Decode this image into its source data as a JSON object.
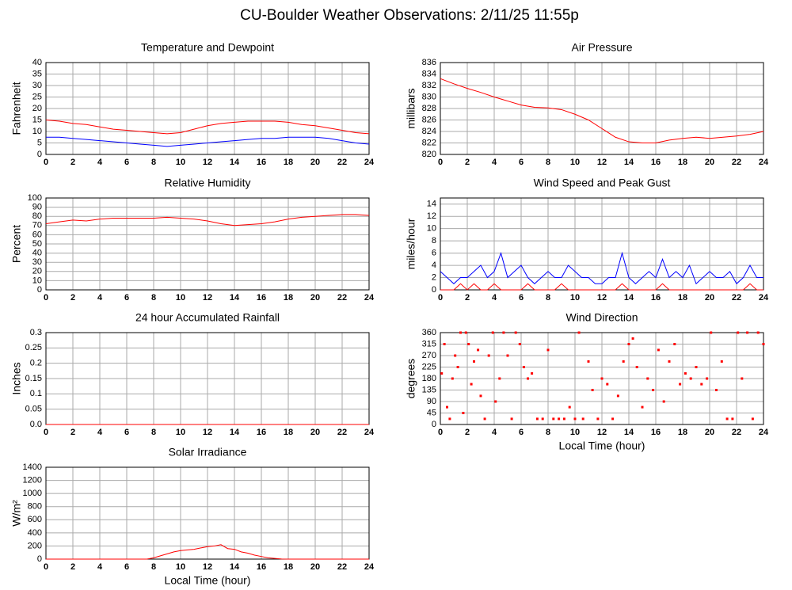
{
  "title": "CU-Boulder Weather Observations: 2/11/25 11:55p",
  "chart_data": [
    {
      "type": "line",
      "title": "Temperature and Dewpoint",
      "y_label": "Fahrenheit",
      "x": [
        0,
        1,
        2,
        3,
        4,
        5,
        6,
        7,
        8,
        9,
        10,
        11,
        12,
        13,
        14,
        15,
        16,
        17,
        18,
        19,
        20,
        21,
        22,
        23,
        24
      ],
      "series": [
        {
          "color": "#ff0000",
          "values": [
            15,
            14.5,
            13.5,
            13,
            12,
            11,
            10.5,
            10,
            9.5,
            9,
            9.5,
            11,
            12.5,
            13.5,
            14,
            14.5,
            14.5,
            14.5,
            14,
            13,
            12.5,
            11.5,
            10.5,
            9.5,
            9
          ]
        },
        {
          "color": "#0000ff",
          "values": [
            7.5,
            7.5,
            7,
            6.5,
            6,
            5.5,
            5,
            4.5,
            4,
            3.5,
            4,
            4.5,
            5,
            5.5,
            6,
            6.5,
            7,
            7,
            7.5,
            7.5,
            7.5,
            7,
            6,
            5,
            4.5
          ]
        }
      ],
      "xlim": [
        0,
        24
      ],
      "ylim": [
        0,
        40
      ],
      "xticks": [
        0,
        2,
        4,
        6,
        8,
        10,
        12,
        14,
        16,
        18,
        20,
        22,
        24
      ],
      "yticks": [
        0,
        5,
        10,
        15,
        20,
        25,
        30,
        35,
        40
      ],
      "grid": true
    },
    {
      "type": "line",
      "title": "Air Pressure",
      "y_label": "millibars",
      "x": [
        0,
        1,
        2,
        3,
        4,
        5,
        6,
        7,
        8,
        9,
        10,
        11,
        12,
        13,
        14,
        15,
        16,
        17,
        18,
        19,
        20,
        21,
        22,
        23,
        24
      ],
      "series": [
        {
          "color": "#ff0000",
          "values": [
            833.2,
            832.3,
            831.5,
            830.8,
            830,
            829.3,
            828.6,
            828.2,
            828.1,
            827.8,
            827,
            826,
            824.5,
            823,
            822.2,
            822,
            822,
            822.5,
            822.8,
            823,
            822.8,
            823,
            823.2,
            823.5,
            824
          ]
        }
      ],
      "xlim": [
        0,
        24
      ],
      "ylim": [
        820,
        836
      ],
      "xticks": [
        0,
        2,
        4,
        6,
        8,
        10,
        12,
        14,
        16,
        18,
        20,
        22,
        24
      ],
      "yticks": [
        820,
        822,
        824,
        826,
        828,
        830,
        832,
        834,
        836
      ],
      "grid": true
    },
    {
      "type": "line",
      "title": "Relative Humidity",
      "y_label": "Percent",
      "x": [
        0,
        1,
        2,
        3,
        4,
        5,
        6,
        7,
        8,
        9,
        10,
        11,
        12,
        13,
        14,
        15,
        16,
        17,
        18,
        19,
        20,
        21,
        22,
        23,
        24
      ],
      "series": [
        {
          "color": "#ff0000",
          "values": [
            72,
            74,
            76,
            75,
            77,
            78,
            78,
            78,
            78,
            79,
            78,
            77,
            75,
            72,
            70,
            71,
            72,
            74,
            77,
            79,
            80,
            81,
            82,
            82,
            81
          ]
        }
      ],
      "xlim": [
        0,
        24
      ],
      "ylim": [
        0,
        100
      ],
      "xticks": [
        0,
        2,
        4,
        6,
        8,
        10,
        12,
        14,
        16,
        18,
        20,
        22,
        24
      ],
      "yticks": [
        0,
        10,
        20,
        30,
        40,
        50,
        60,
        70,
        80,
        90,
        100
      ],
      "grid": true
    },
    {
      "type": "line",
      "title": "Wind Speed and Peak Gust",
      "y_label": "miles/hour",
      "x": [
        0,
        0.5,
        1,
        1.5,
        2,
        2.5,
        3,
        3.5,
        4,
        4.5,
        5,
        5.5,
        6,
        6.5,
        7,
        7.5,
        8,
        8.5,
        9,
        9.5,
        10,
        10.5,
        11,
        11.5,
        12,
        12.5,
        13,
        13.5,
        14,
        14.5,
        15,
        15.5,
        16,
        16.5,
        17,
        17.5,
        18,
        18.5,
        19,
        19.5,
        20,
        20.5,
        21,
        21.5,
        22,
        22.5,
        23,
        23.5,
        24
      ],
      "series": [
        {
          "color": "#0000ff",
          "values": [
            3,
            2,
            1,
            2,
            2,
            3,
            4,
            2,
            3,
            6,
            2,
            3,
            4,
            2,
            1,
            2,
            3,
            2,
            2,
            4,
            3,
            2,
            2,
            1,
            1,
            2,
            2,
            6,
            2,
            1,
            2,
            3,
            2,
            5,
            2,
            3,
            2,
            4,
            1,
            2,
            3,
            2,
            2,
            3,
            1,
            2,
            4,
            2,
            2
          ]
        },
        {
          "color": "#ff0000",
          "values": [
            0,
            0,
            0,
            1,
            0,
            1,
            0,
            0,
            1,
            0,
            0,
            0,
            0,
            1,
            0,
            0,
            0,
            0,
            1,
            0,
            0,
            0,
            0,
            0,
            0,
            0,
            0,
            1,
            0,
            0,
            0,
            0,
            0,
            1,
            0,
            0,
            0,
            0,
            0,
            0,
            0,
            0,
            0,
            0,
            0,
            0,
            1,
            0,
            0
          ]
        }
      ],
      "xlim": [
        0,
        24
      ],
      "ylim": [
        0,
        15
      ],
      "xticks": [
        0,
        2,
        4,
        6,
        8,
        10,
        12,
        14,
        16,
        18,
        20,
        22,
        24
      ],
      "yticks": [
        0,
        2,
        4,
        6,
        8,
        10,
        12,
        14
      ],
      "grid": true
    },
    {
      "type": "line",
      "title": "24 hour Accumulated Rainfall",
      "y_label": "Inches",
      "x": [
        0,
        24
      ],
      "series": [
        {
          "color": "#ff0000",
          "values": [
            0,
            0
          ]
        }
      ],
      "xlim": [
        0,
        24
      ],
      "ylim": [
        0,
        0.3
      ],
      "xticks": [
        0,
        2,
        4,
        6,
        8,
        10,
        12,
        14,
        16,
        18,
        20,
        22,
        24
      ],
      "yticks": [
        {
          "value": 0,
          "label": "0.0"
        },
        0.05,
        0.1,
        0.15,
        0.2,
        0.25,
        0.3
      ],
      "grid": true
    },
    {
      "type": "scatter",
      "title": "Wind Direction",
      "y_label": "degrees",
      "x_label": "Local Time (hour)",
      "x": [
        0.1,
        0.3,
        0.5,
        0.7,
        0.9,
        1.1,
        1.3,
        1.5,
        1.7,
        1.9,
        2.1,
        2.3,
        2.5,
        2.8,
        3.0,
        3.3,
        3.6,
        3.9,
        4.1,
        4.4,
        4.7,
        5.0,
        5.3,
        5.6,
        5.9,
        6.2,
        6.5,
        6.8,
        7.2,
        7.6,
        8.0,
        8.4,
        8.8,
        9.2,
        9.6,
        10.0,
        10.3,
        10.6,
        11.0,
        11.3,
        11.7,
        12.0,
        12.4,
        12.8,
        13.2,
        13.6,
        14.0,
        14.3,
        14.6,
        15.0,
        15.4,
        15.8,
        16.2,
        16.6,
        17.0,
        17.4,
        17.8,
        18.2,
        18.6,
        19.0,
        19.4,
        19.8,
        20.1,
        20.5,
        20.9,
        21.3,
        21.7,
        22.1,
        22.4,
        22.8,
        23.2,
        23.6,
        24.0
      ],
      "series": [
        {
          "color": "#ff0000",
          "values": [
            200,
            315,
            68,
            22,
            180,
            270,
            225,
            360,
            45,
            360,
            315,
            158,
            247,
            292,
            112,
            22,
            270,
            360,
            90,
            180,
            360,
            270,
            22,
            360,
            315,
            225,
            180,
            200,
            22,
            22,
            292,
            22,
            22,
            22,
            68,
            22,
            360,
            22,
            247,
            135,
            22,
            180,
            158,
            22,
            112,
            247,
            315,
            337,
            225,
            68,
            180,
            135,
            292,
            90,
            247,
            315,
            158,
            200,
            180,
            225,
            158,
            180,
            360,
            135,
            247,
            22,
            22,
            360,
            180,
            360,
            22,
            360,
            315
          ]
        }
      ],
      "xlim": [
        0,
        24
      ],
      "ylim": [
        0,
        360
      ],
      "xticks": [
        0,
        2,
        4,
        6,
        8,
        10,
        12,
        14,
        16,
        18,
        20,
        22,
        24
      ],
      "yticks": [
        0,
        45,
        90,
        135,
        180,
        225,
        270,
        315,
        360
      ],
      "grid": true
    },
    {
      "type": "line",
      "title": "Solar Irradiance",
      "y_label": "W/m²",
      "x_label": "Local Time (hour)",
      "x": [
        0,
        0.5,
        1,
        1.5,
        2,
        2.5,
        3,
        3.5,
        4,
        4.5,
        5,
        5.5,
        6,
        6.5,
        7,
        7.5,
        8,
        8.5,
        9,
        9.5,
        10,
        10.5,
        11,
        11.5,
        12,
        12.5,
        13,
        13.5,
        14,
        14.5,
        15,
        15.5,
        16,
        16.5,
        17,
        17.5,
        18,
        18.5,
        19,
        19.5,
        20,
        20.5,
        21,
        21.5,
        22,
        22.5,
        23,
        23.5,
        24
      ],
      "series": [
        {
          "color": "#ff0000",
          "values": [
            0,
            0,
            0,
            0,
            0,
            0,
            0,
            0,
            0,
            0,
            0,
            0,
            0,
            0,
            0,
            0,
            20,
            50,
            80,
            110,
            130,
            140,
            150,
            170,
            190,
            200,
            220,
            160,
            150,
            110,
            90,
            60,
            40,
            20,
            10,
            2,
            0,
            0,
            0,
            0,
            0,
            0,
            0,
            0,
            0,
            0,
            0,
            0,
            0
          ]
        }
      ],
      "xlim": [
        0,
        24
      ],
      "ylim": [
        0,
        1400
      ],
      "xticks": [
        0,
        2,
        4,
        6,
        8,
        10,
        12,
        14,
        16,
        18,
        20,
        22,
        24
      ],
      "yticks": [
        0,
        200,
        400,
        600,
        800,
        1000,
        1200,
        1400
      ],
      "grid": true
    }
  ]
}
